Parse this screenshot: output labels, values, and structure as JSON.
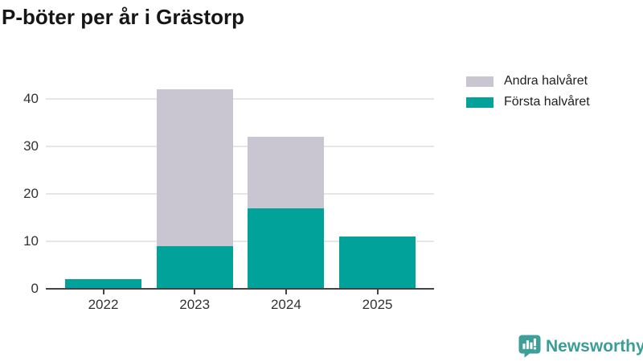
{
  "chart_data": {
    "type": "bar",
    "stacked": true,
    "title": "P-böter per år i Grästorp",
    "categories": [
      "2022",
      "2023",
      "2024",
      "2025"
    ],
    "series": [
      {
        "name": "Första halvåret",
        "key": "first-half",
        "color": "#00a29a",
        "values": [
          2,
          9,
          17,
          11
        ]
      },
      {
        "name": "Andra halvåret",
        "key": "second-half",
        "color": "#c9c6d1",
        "values": [
          0,
          33,
          15,
          0
        ]
      }
    ],
    "totals": [
      2,
      42,
      32,
      11
    ],
    "xlabel": "",
    "ylabel": "",
    "ylim": [
      0,
      45
    ],
    "yticks": [
      0,
      10,
      20,
      30,
      40
    ],
    "grid": true,
    "legend_position": "top-right",
    "legend_order": [
      "Andra halvåret",
      "Första halvåret"
    ],
    "colors": {
      "axis": "#444444",
      "gridline": "#e6e6e6",
      "tick_label": "#333333",
      "title": "#161616"
    }
  },
  "footer": {
    "brand": "Newsworthy",
    "brand_color": "#3a9e96"
  }
}
